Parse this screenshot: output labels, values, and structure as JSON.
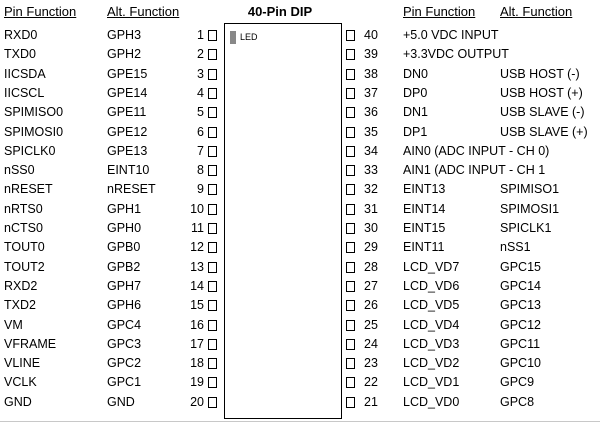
{
  "headers": {
    "left_pin_function": "Pin Function",
    "left_alt_function": "Alt. Function",
    "chip_title": "40-Pin DIP",
    "right_pin_function": "Pin Function",
    "right_alt_function": "Alt. Function"
  },
  "led_label": "LED",
  "left_pins": [
    {
      "num": "1",
      "func": "RXD0",
      "alt": "GPH3"
    },
    {
      "num": "2",
      "func": "TXD0",
      "alt": "GPH2"
    },
    {
      "num": "3",
      "func": "IICSDA",
      "alt": "GPE15"
    },
    {
      "num": "4",
      "func": "IICSCL",
      "alt": "GPE14"
    },
    {
      "num": "5",
      "func": "SPIMISO0",
      "alt": "GPE11"
    },
    {
      "num": "6",
      "func": "SPIMOSI0",
      "alt": "GPE12"
    },
    {
      "num": "7",
      "func": "SPICLK0",
      "alt": "GPE13"
    },
    {
      "num": "8",
      "func": "nSS0",
      "alt": "EINT10"
    },
    {
      "num": "9",
      "func": "nRESET",
      "alt": "nRESET"
    },
    {
      "num": "10",
      "func": "nRTS0",
      "alt": "GPH1"
    },
    {
      "num": "11",
      "func": "nCTS0",
      "alt": "GPH0"
    },
    {
      "num": "12",
      "func": "TOUT0",
      "alt": "GPB0"
    },
    {
      "num": "13",
      "func": "TOUT2",
      "alt": "GPB2"
    },
    {
      "num": "14",
      "func": "RXD2",
      "alt": "GPH7"
    },
    {
      "num": "15",
      "func": "TXD2",
      "alt": "GPH6"
    },
    {
      "num": "16",
      "func": "VM",
      "alt": "GPC4"
    },
    {
      "num": "17",
      "func": "VFRAME",
      "alt": "GPC3"
    },
    {
      "num": "18",
      "func": "VLINE",
      "alt": "GPC2"
    },
    {
      "num": "19",
      "func": "VCLK",
      "alt": "GPC1"
    },
    {
      "num": "20",
      "func": "GND",
      "alt": "GND"
    }
  ],
  "right_pins": [
    {
      "num": "40",
      "func": "+5.0 VDC INPUT",
      "alt": ""
    },
    {
      "num": "39",
      "func": "+3.3VDC OUTPUT",
      "alt": ""
    },
    {
      "num": "38",
      "func": "DN0",
      "alt": "USB HOST (-)"
    },
    {
      "num": "37",
      "func": "DP0",
      "alt": "USB HOST (+)"
    },
    {
      "num": "36",
      "func": "DN1",
      "alt": "USB SLAVE (-)"
    },
    {
      "num": "35",
      "func": "DP1",
      "alt": "USB SLAVE (+)"
    },
    {
      "num": "34",
      "func": "AIN0 (ADC INPUT - CH 0)",
      "alt": ""
    },
    {
      "num": "33",
      "func": "AIN1 (ADC INPUT - CH 1",
      "alt": ""
    },
    {
      "num": "32",
      "func": "EINT13",
      "alt": "SPIMISO1"
    },
    {
      "num": "31",
      "func": "EINT14",
      "alt": "SPIMOSI1"
    },
    {
      "num": "30",
      "func": "EINT15",
      "alt": "SPICLK1"
    },
    {
      "num": "29",
      "func": "EINT11",
      "alt": "nSS1"
    },
    {
      "num": "28",
      "func": "LCD_VD7",
      "alt": "GPC15"
    },
    {
      "num": "27",
      "func": "LCD_VD6",
      "alt": "GPC14"
    },
    {
      "num": "26",
      "func": "LCD_VD5",
      "alt": "GPC13"
    },
    {
      "num": "25",
      "func": "LCD_VD4",
      "alt": "GPC12"
    },
    {
      "num": "24",
      "func": "LCD_VD3",
      "alt": "GPC11"
    },
    {
      "num": "23",
      "func": "LCD_VD2",
      "alt": "GPC10"
    },
    {
      "num": "22",
      "func": "LCD_VD1",
      "alt": "GPC9"
    },
    {
      "num": "21",
      "func": "LCD_VD0",
      "alt": "GPC8"
    }
  ]
}
